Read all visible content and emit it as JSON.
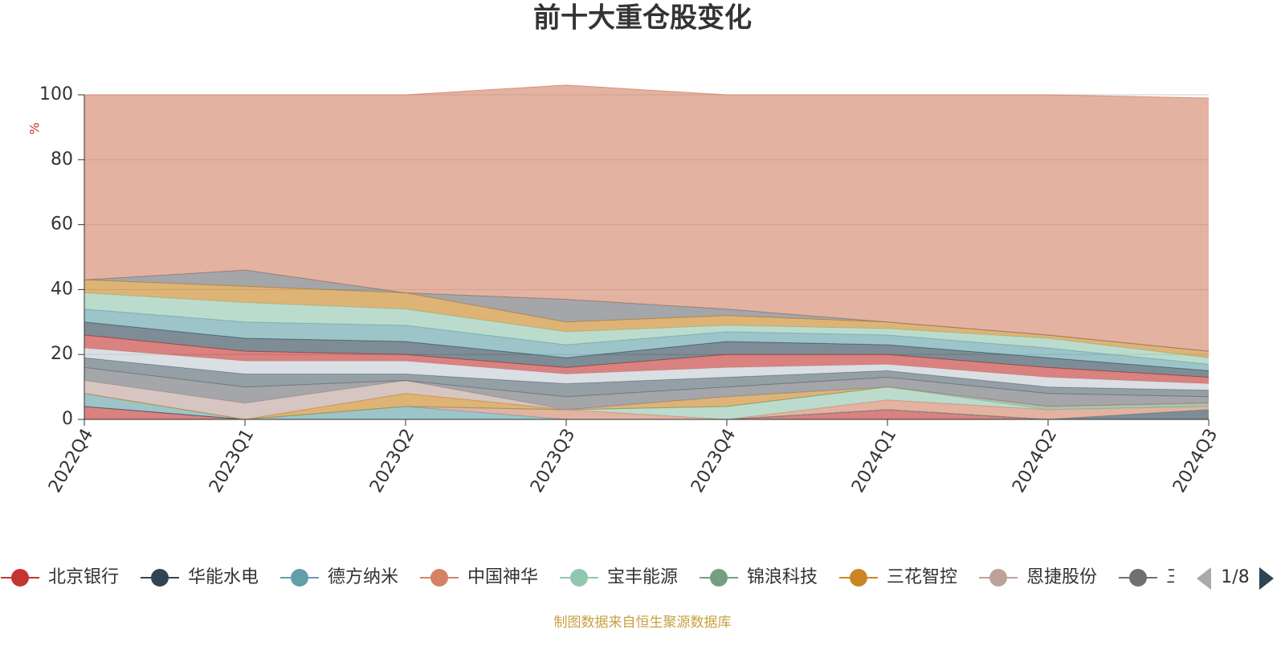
{
  "chart_data": {
    "type": "stacked_area",
    "title": "前十大重仓股变化",
    "y_label": "%",
    "categories": [
      "2022Q4",
      "2023Q1",
      "2023Q2",
      "2023Q3",
      "2023Q4",
      "2024Q1",
      "2024Q2",
      "2024Q3"
    ],
    "ylim": [
      0,
      100
    ],
    "yticks": [
      0,
      20,
      40,
      60,
      80,
      100
    ],
    "grid": true,
    "series": [
      {
        "name": "北京银行",
        "color": "#c23531",
        "values": [
          4,
          0,
          0,
          0,
          0,
          3,
          0,
          0
        ]
      },
      {
        "name": "华能水电",
        "color": "#2f4554",
        "values": [
          0,
          0,
          0,
          0,
          0,
          0,
          0,
          3
        ]
      },
      {
        "name": "德方纳米",
        "color": "#61a0a8",
        "values": [
          4,
          0,
          4,
          0,
          0,
          0,
          0,
          0
        ]
      },
      {
        "name": "中国神华",
        "color": "#d48265",
        "values": [
          0,
          0,
          0,
          3,
          0,
          3,
          3,
          1
        ]
      },
      {
        "name": "宝丰能源",
        "color": "#91c7ae",
        "values": [
          0,
          0,
          0,
          0,
          4,
          4,
          0,
          0
        ]
      },
      {
        "name": "锦浪科技",
        "color": "#749f83",
        "values": [
          0,
          0,
          0,
          0,
          0,
          0,
          1,
          1
        ]
      },
      {
        "name": "三花智控",
        "color": "#ca8622",
        "values": [
          0,
          0,
          4,
          0,
          3,
          0,
          0,
          0
        ]
      },
      {
        "name": "恩捷股份",
        "color": "#bda29a",
        "values": [
          4,
          5,
          4,
          0,
          0,
          0,
          0,
          0
        ]
      },
      {
        "name": "三",
        "color": "#6e7074",
        "values": [
          4,
          5,
          0,
          4,
          3,
          3,
          4,
          2
        ]
      },
      {
        "color": "#546570",
        "values": [
          3,
          4,
          2,
          4,
          3,
          2,
          2,
          2
        ]
      },
      {
        "color": "#c4ccd3",
        "values": [
          3,
          4,
          4,
          3,
          3,
          2,
          3,
          2
        ]
      },
      {
        "color": "#c23531",
        "values": [
          4,
          3,
          2,
          2,
          4,
          3,
          3,
          2
        ]
      },
      {
        "color": "#2f4554",
        "values": [
          4,
          4,
          4,
          3,
          4,
          3,
          3,
          2
        ]
      },
      {
        "color": "#61a0a8",
        "values": [
          4,
          5,
          5,
          4,
          3,
          3,
          3,
          2
        ]
      },
      {
        "color": "#91c7ae",
        "values": [
          5,
          6,
          5,
          4,
          2,
          2,
          3,
          2
        ]
      },
      {
        "color": "#ca8622",
        "values": [
          4,
          5,
          5,
          3,
          3,
          2,
          1,
          2
        ]
      },
      {
        "color": "#6e7074",
        "values": [
          0,
          5,
          0,
          7,
          2,
          0,
          0,
          0
        ]
      },
      {
        "color": "#d48265",
        "values": [
          57,
          54,
          61,
          66,
          66,
          70,
          74,
          78
        ]
      }
    ],
    "legend_page": "1/8",
    "source": "制图数据来自恒生聚源数据库"
  }
}
